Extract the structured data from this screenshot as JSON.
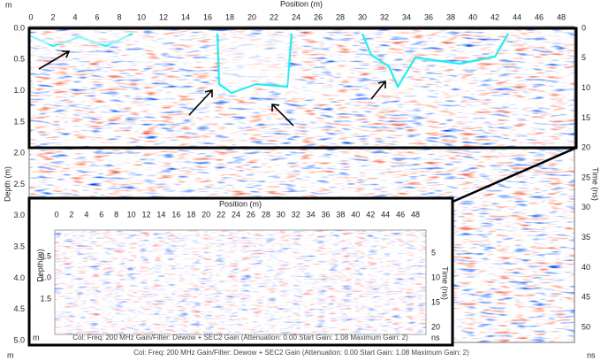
{
  "main": {
    "x_label": "Position (m)",
    "x_unit": "m",
    "xticks": [
      "0",
      "2",
      "4",
      "6",
      "8",
      "10",
      "12",
      "14",
      "16",
      "18",
      "20",
      "22",
      "24",
      "26",
      "28",
      "30",
      "32",
      "34",
      "36",
      "38",
      "40",
      "42",
      "44",
      "46",
      "48"
    ],
    "left_label": "Depth (m)",
    "left_unit": "m",
    "left_ticks": [
      "0.0",
      "0.5",
      "1.0",
      "1.5",
      "2.0",
      "2.5",
      "3.0",
      "3.5",
      "4.0",
      "4.5",
      "5.0"
    ],
    "right_label": "Time (ns)",
    "right_unit": "ns",
    "right_ticks": [
      "0",
      "5",
      "10",
      "15",
      "20",
      "25",
      "30",
      "35",
      "40",
      "45",
      "50"
    ],
    "caption": "Col:  Freq: 200 MHz Gain/Filter: Dewow + SEC2 Gain (Attenuation: 0.00 Start Gain: 1.08 Maximum Gain: 2)"
  },
  "inset": {
    "x_label": "Position (m)",
    "xticks": [
      "0",
      "2",
      "4",
      "6",
      "8",
      "10",
      "12",
      "14",
      "16",
      "18",
      "20",
      "22",
      "24",
      "26",
      "28",
      "30",
      "32",
      "34",
      "36",
      "38",
      "40",
      "42",
      "44",
      "46",
      "48"
    ],
    "left_label": "Depth(m)",
    "left_unit": "m",
    "left_ticks": [
      "0.5",
      "1.0",
      "1.5"
    ],
    "right_label": "Time (ns)",
    "right_unit": "ns",
    "right_ticks": [
      "5",
      "10",
      "15",
      "20"
    ],
    "caption": "Col:  Freq: 200 MHz Gain/Filter: Dewow + SEC2 Gain (Attenuation: 0.00 Start Gain: 1.08 Maximum Gain: 2)"
  }
}
